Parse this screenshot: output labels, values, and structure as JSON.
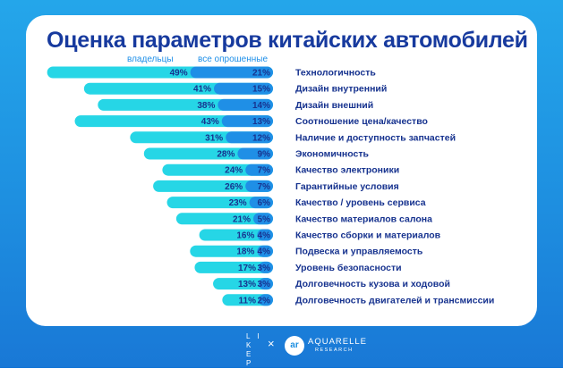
{
  "chart_data": {
    "type": "bar",
    "title": "Оценка параметров китайских автомобилей",
    "series": [
      {
        "name": "владельцы",
        "values": [
          49,
          41,
          38,
          43,
          31,
          28,
          24,
          26,
          23,
          21,
          16,
          18,
          17,
          13,
          11
        ]
      },
      {
        "name": "все опрошенные",
        "values": [
          21,
          15,
          14,
          13,
          12,
          9,
          7,
          7,
          6,
          5,
          4,
          4,
          3,
          3,
          2
        ]
      }
    ],
    "categories": [
      "Технологичность",
      "Дизайн внутренний",
      "Дизайн внешний",
      "Соотношение цена/качество",
      "Наличие и доступность запчастей",
      "Экономичность",
      "Качество электроники",
      "Гарантийные условия",
      "Качество / уровень сервиса",
      "Качество материалов салона",
      "Качество сборки и материалов",
      "Подвеска и управляемость",
      "Уровень безопасности",
      "Долговечность кузова и ходовой",
      "Долговечность двигателей и трансмиссии"
    ],
    "value_suffix": "%",
    "colors": {
      "owners": "#26d6e6",
      "all": "#1f8fe6",
      "text": "#17338f"
    }
  },
  "footer": {
    "likepr": [
      "L I",
      "K E",
      "P R"
    ],
    "cross": "×",
    "partner_mark": "ar",
    "partner_name": "AQUARELLE",
    "partner_sub": "RESEARCH"
  }
}
